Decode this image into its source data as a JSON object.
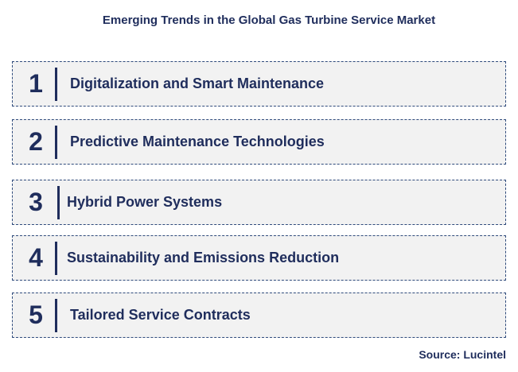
{
  "title": "Emerging Trends in the Global Gas Turbine Service Market",
  "trends": [
    {
      "number": "1",
      "label": "Digitalization and Smart Maintenance"
    },
    {
      "number": "2",
      "label": "Predictive Maintenance Technologies"
    },
    {
      "number": "3",
      "label": "Hybrid Power Systems"
    },
    {
      "number": "4",
      "label": "Sustainability and Emissions Reduction"
    },
    {
      "number": "5",
      "label": "Tailored Service Contracts"
    }
  ],
  "source": "Source: Lucintel",
  "colors": {
    "text": "#1f2d5c",
    "box_fill": "#f2f2f2",
    "box_border": "#2f4b7c"
  }
}
